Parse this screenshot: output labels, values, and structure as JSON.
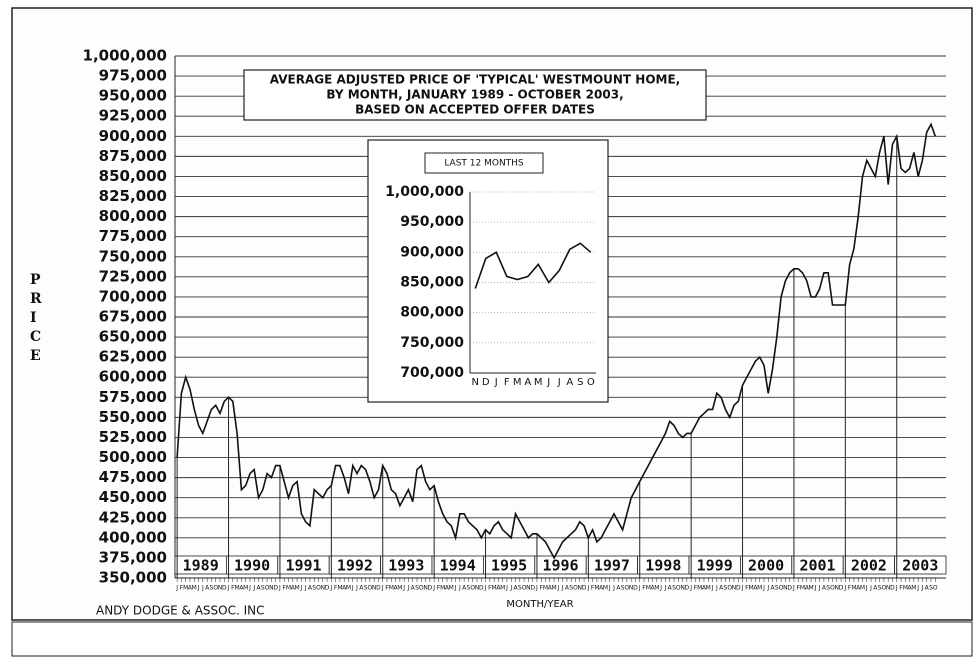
{
  "chart_data": [
    {
      "type": "line",
      "title_lines": [
        "AVERAGE ADJUSTED PRICE OF 'TYPICAL' WESTMOUNT HOME,",
        "BY MONTH, JANUARY 1989 - OCTOBER 2003,",
        "BASED ON ACCEPTED OFFER DATES"
      ],
      "y_label": "PRICE",
      "x_label": "MONTH/YEAR",
      "credit": "ANDY DODGE & ASSOC. INC",
      "color": "#111111",
      "grid": true,
      "year_labels": [
        "1989",
        "1990",
        "1991",
        "1992",
        "1993",
        "1994",
        "1995",
        "1996",
        "1997",
        "1998",
        "1999",
        "2000",
        "2001",
        "2002",
        "2003"
      ],
      "month_initials": [
        "J",
        "F",
        "M",
        "A",
        "M",
        "J",
        "J",
        "A",
        "S",
        "O",
        "N",
        "D"
      ],
      "x": [
        "1989-01",
        "1989-02",
        "1989-03",
        "1989-04",
        "1989-05",
        "1989-06",
        "1989-07",
        "1989-08",
        "1989-09",
        "1989-10",
        "1989-11",
        "1989-12",
        "1990-01",
        "1990-02",
        "1990-03",
        "1990-04",
        "1990-05",
        "1990-06",
        "1990-07",
        "1990-08",
        "1990-09",
        "1990-10",
        "1990-11",
        "1990-12",
        "1991-01",
        "1991-02",
        "1991-03",
        "1991-04",
        "1991-05",
        "1991-06",
        "1991-07",
        "1991-08",
        "1991-09",
        "1991-10",
        "1991-11",
        "1991-12",
        "1992-01",
        "1992-02",
        "1992-03",
        "1992-04",
        "1992-05",
        "1992-06",
        "1992-07",
        "1992-08",
        "1992-09",
        "1992-10",
        "1992-11",
        "1992-12",
        "1993-01",
        "1993-02",
        "1993-03",
        "1993-04",
        "1993-05",
        "1993-06",
        "1993-07",
        "1993-08",
        "1993-09",
        "1993-10",
        "1993-11",
        "1993-12",
        "1994-01",
        "1994-02",
        "1994-03",
        "1994-04",
        "1994-05",
        "1994-06",
        "1994-07",
        "1994-08",
        "1994-09",
        "1994-10",
        "1994-11",
        "1994-12",
        "1995-01",
        "1995-02",
        "1995-03",
        "1995-04",
        "1995-05",
        "1995-06",
        "1995-07",
        "1995-08",
        "1995-09",
        "1995-10",
        "1995-11",
        "1995-12",
        "1996-01",
        "1996-02",
        "1996-03",
        "1996-04",
        "1996-05",
        "1996-06",
        "1996-07",
        "1996-08",
        "1996-09",
        "1996-10",
        "1996-11",
        "1996-12",
        "1997-01",
        "1997-02",
        "1997-03",
        "1997-04",
        "1997-05",
        "1997-06",
        "1997-07",
        "1997-08",
        "1997-09",
        "1997-10",
        "1997-11",
        "1997-12",
        "1998-01",
        "1998-02",
        "1998-03",
        "1998-04",
        "1998-05",
        "1998-06",
        "1998-07",
        "1998-08",
        "1998-09",
        "1998-10",
        "1998-11",
        "1998-12",
        "1999-01",
        "1999-02",
        "1999-03",
        "1999-04",
        "1999-05",
        "1999-06",
        "1999-07",
        "1999-08",
        "1999-09",
        "1999-10",
        "1999-11",
        "1999-12",
        "2000-01",
        "2000-02",
        "2000-03",
        "2000-04",
        "2000-05",
        "2000-06",
        "2000-07",
        "2000-08",
        "2000-09",
        "2000-10",
        "2000-11",
        "2000-12",
        "2001-01",
        "2001-02",
        "2001-03",
        "2001-04",
        "2001-05",
        "2001-06",
        "2001-07",
        "2001-08",
        "2001-09",
        "2001-10",
        "2001-11",
        "2001-12",
        "2002-01",
        "2002-02",
        "2002-03",
        "2002-04",
        "2002-05",
        "2002-06",
        "2002-07",
        "2002-08",
        "2002-09",
        "2002-10",
        "2002-11",
        "2002-12",
        "2003-01",
        "2003-02",
        "2003-03",
        "2003-04",
        "2003-05",
        "2003-06",
        "2003-07",
        "2003-08",
        "2003-09",
        "2003-10"
      ],
      "values": [
        500000,
        580000,
        600000,
        585000,
        560000,
        540000,
        530000,
        545000,
        560000,
        565000,
        555000,
        570000,
        575000,
        570000,
        530000,
        460000,
        465000,
        480000,
        485000,
        450000,
        460000,
        480000,
        475000,
        490000,
        490000,
        470000,
        450000,
        465000,
        470000,
        430000,
        420000,
        415000,
        460000,
        455000,
        450000,
        460000,
        465000,
        490000,
        490000,
        475000,
        455000,
        490000,
        480000,
        490000,
        485000,
        470000,
        450000,
        460000,
        490000,
        480000,
        460000,
        455000,
        440000,
        450000,
        460000,
        445000,
        485000,
        490000,
        470000,
        460000,
        465000,
        445000,
        430000,
        420000,
        415000,
        400000,
        430000,
        430000,
        420000,
        415000,
        410000,
        400000,
        410000,
        405000,
        415000,
        420000,
        410000,
        405000,
        400000,
        430000,
        420000,
        410000,
        400000,
        405000,
        405000,
        400000,
        395000,
        385000,
        375000,
        385000,
        395000,
        400000,
        405000,
        410000,
        420000,
        415000,
        400000,
        410000,
        395000,
        400000,
        410000,
        420000,
        430000,
        420000,
        410000,
        430000,
        450000,
        460000,
        470000,
        480000,
        490000,
        500000,
        510000,
        520000,
        530000,
        545000,
        540000,
        530000,
        525000,
        530000,
        530000,
        540000,
        550000,
        555000,
        560000,
        560000,
        580000,
        575000,
        560000,
        550000,
        565000,
        570000,
        590000,
        600000,
        610000,
        620000,
        625000,
        615000,
        580000,
        610000,
        650000,
        700000,
        720000,
        730000,
        735000,
        735000,
        730000,
        720000,
        700000,
        700000,
        710000,
        730000,
        730000,
        690000,
        690000,
        690000,
        690000,
        740000,
        760000,
        800000,
        850000,
        870000,
        860000,
        850000,
        880000,
        900000,
        840000,
        890000,
        900000,
        860000,
        855000,
        860000,
        880000,
        850000,
        870000,
        905000,
        915000,
        900000
      ],
      "ylim": [
        350000,
        1000000
      ],
      "yticks": [
        {
          "value": 350000,
          "label": "350,000"
        },
        {
          "value": 375000,
          "label": "375,000"
        },
        {
          "value": 400000,
          "label": "400,000"
        },
        {
          "value": 425000,
          "label": "425,000"
        },
        {
          "value": 450000,
          "label": "450,000"
        },
        {
          "value": 475000,
          "label": "475,000"
        },
        {
          "value": 500000,
          "label": "500,000"
        },
        {
          "value": 525000,
          "label": "525,000"
        },
        {
          "value": 550000,
          "label": "550,000"
        },
        {
          "value": 575000,
          "label": "575,000"
        },
        {
          "value": 600000,
          "label": "600,000"
        },
        {
          "value": 625000,
          "label": "625,000"
        },
        {
          "value": 650000,
          "label": "650,000"
        },
        {
          "value": 675000,
          "label": "675,000"
        },
        {
          "value": 700000,
          "label": "700,000"
        },
        {
          "value": 725000,
          "label": "725,000"
        },
        {
          "value": 750000,
          "label": "750,000"
        },
        {
          "value": 775000,
          "label": "775,000"
        },
        {
          "value": 800000,
          "label": "800,000"
        },
        {
          "value": 825000,
          "label": "825,000"
        },
        {
          "value": 850000,
          "label": "850,000"
        },
        {
          "value": 875000,
          "label": "875,000"
        },
        {
          "value": 900000,
          "label": "900,000"
        },
        {
          "value": 925000,
          "label": "925,000"
        },
        {
          "value": 950000,
          "label": "950,000"
        },
        {
          "value": 975000,
          "label": "975,000"
        },
        {
          "value": 1000000,
          "label": "1,000,000"
        }
      ]
    },
    {
      "type": "line",
      "title": "LAST 12 MONTHS",
      "color": "#111111",
      "grid": true,
      "categories": [
        "N",
        "D",
        "J",
        "F",
        "M",
        "A",
        "M",
        "J",
        "J",
        "A",
        "S",
        "O"
      ],
      "values": [
        840000,
        890000,
        900000,
        860000,
        855000,
        860000,
        880000,
        850000,
        870000,
        905000,
        915000,
        900000
      ],
      "ylim": [
        700000,
        1000000
      ],
      "yticks": [
        {
          "value": 700000,
          "label": "700,000"
        },
        {
          "value": 750000,
          "label": "750,000"
        },
        {
          "value": 800000,
          "label": "800,000"
        },
        {
          "value": 850000,
          "label": "850,000"
        },
        {
          "value": 900000,
          "label": "900,000"
        },
        {
          "value": 950000,
          "label": "950,000"
        },
        {
          "value": 1000000,
          "label": "1,000,000"
        }
      ]
    }
  ]
}
